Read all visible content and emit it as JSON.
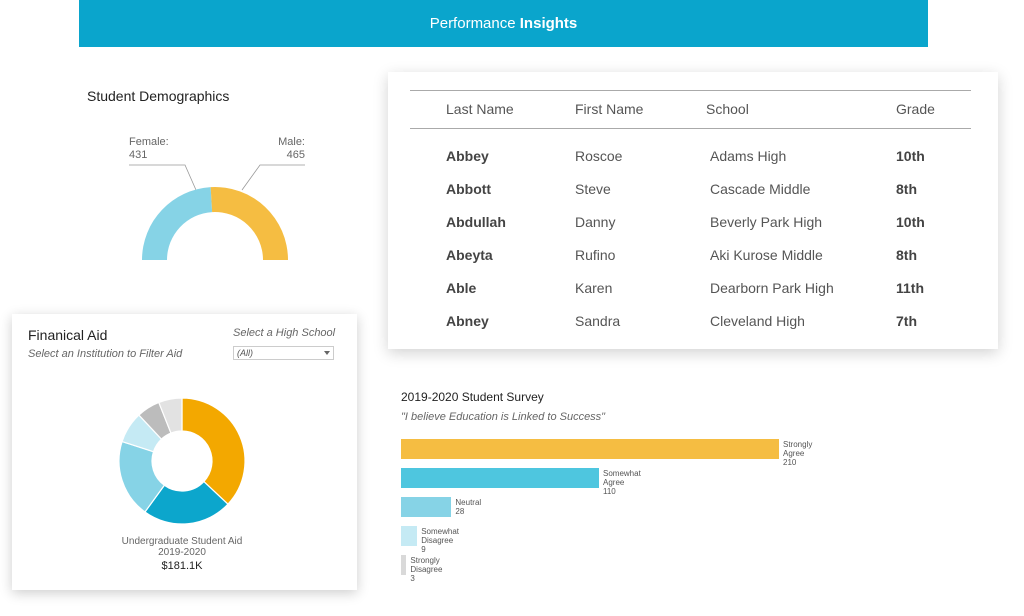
{
  "header": {
    "title_regular": "Performance",
    "title_bold": "Insights"
  },
  "demographics": {
    "title": "Student Demographics",
    "female_label": "Female:",
    "female_value": "431",
    "male_label": "Male:",
    "male_value": "465",
    "colors": {
      "female": "#86d3e6",
      "male": "#f5bd42"
    }
  },
  "table": {
    "headers": [
      "Last Name",
      "First Name",
      "School",
      "Grade"
    ],
    "rows": [
      [
        "Abbey",
        "Roscoe",
        "Adams High",
        "10th"
      ],
      [
        "Abbott",
        "Steve",
        "Cascade Middle",
        "8th"
      ],
      [
        "Abdullah",
        "Danny",
        "Beverly Park High",
        "10th"
      ],
      [
        "Abeyta",
        "Rufino",
        "Aki Kurose Middle",
        "8th"
      ],
      [
        "Able",
        "Karen",
        "Dearborn Park High",
        "11th"
      ],
      [
        "Abney",
        "Sandra",
        "Cleveland High",
        "7th"
      ]
    ]
  },
  "aid": {
    "title": "Finanical Aid",
    "subtitle": "Select an Institution to Filter Aid",
    "select_label": "Select a High School",
    "select_value": "(All)",
    "caption_line1": "Undergraduate Student Aid",
    "caption_line2": "2019-2020",
    "total": "$181.1K"
  },
  "survey": {
    "title": "2019-2020 Student Survey",
    "subtitle": "\"I believe Education is Linked to Success\""
  },
  "chart_data": [
    {
      "type": "pie",
      "title": "Student Demographics",
      "categories": [
        "Female",
        "Male"
      ],
      "values": [
        431,
        465
      ],
      "colors": [
        "#86d3e6",
        "#f5bd42"
      ]
    },
    {
      "type": "pie",
      "title": "Finanical Aid",
      "values": [
        37,
        23,
        20,
        8,
        6,
        6
      ],
      "colors": [
        "#f3a800",
        "#0ca6cc",
        "#86d3e6",
        "#c5eaf4",
        "#bcbcbc",
        "#e2e2e2"
      ]
    },
    {
      "type": "bar",
      "title": "2019-2020 Student Survey",
      "categories": [
        "Strongly Agree",
        "Somewhat Agree",
        "Neutral",
        "Somewhat Disagree",
        "Strongly Disagree"
      ],
      "values": [
        210,
        110,
        28,
        9,
        3
      ],
      "colors": [
        "#f5bd42",
        "#4ec6df",
        "#86d3e6",
        "#c5eaf4",
        "#d9d9d9"
      ]
    }
  ]
}
